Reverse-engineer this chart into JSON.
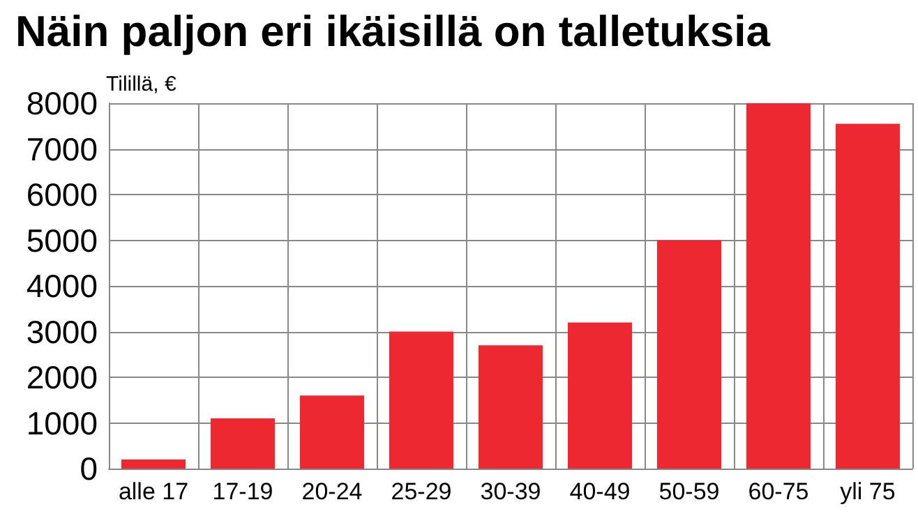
{
  "chart_data": {
    "type": "bar",
    "title": "Näin paljon eri ikäisillä on talletuksia",
    "ylabel": "Tilillä, €",
    "categories": [
      "alle 17",
      "17-19",
      "20-24",
      "25-29",
      "30-39",
      "40-49",
      "50-59",
      "60-75",
      "yli 75"
    ],
    "values": [
      200,
      1100,
      1600,
      3000,
      2700,
      3200,
      5000,
      8000,
      7550
    ],
    "color": "#ee2830",
    "ylim": [
      0,
      8000
    ],
    "yticks": [
      0,
      1000,
      2000,
      3000,
      4000,
      5000,
      6000,
      7000,
      8000
    ],
    "grid": true
  }
}
